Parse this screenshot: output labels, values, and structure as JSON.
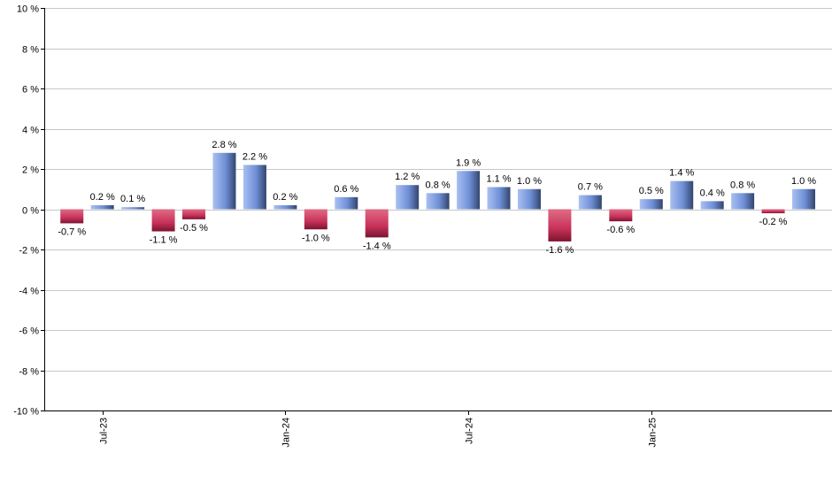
{
  "chart_data": {
    "type": "bar",
    "title": "",
    "xlabel": "",
    "ylabel": "",
    "ylim": [
      -10,
      10
    ],
    "y_ticks": [
      10,
      8,
      6,
      4,
      2,
      0,
      -2,
      -4,
      -6,
      -8,
      -10
    ],
    "y_tick_labels": [
      "10 %",
      "8 %",
      "6 %",
      "4 %",
      "2 %",
      "0 %",
      "-2 %",
      "-4 %",
      "-6 %",
      "-8 %",
      "-10 %"
    ],
    "grid": true,
    "legend": "none",
    "colors": {
      "positive": "#6f8fd6",
      "negative": "#c8325a",
      "grid": "#c8c8c8",
      "axis": "#000000"
    },
    "categories": [
      "2023-06",
      "2023-07",
      "2023-08",
      "2023-09",
      "2023-10",
      "2023-11",
      "2023-12",
      "2024-01",
      "2024-02",
      "2024-03",
      "2024-04",
      "2024-05",
      "2024-06",
      "2024-07",
      "2024-08",
      "2024-09",
      "2024-10",
      "2024-11",
      "2024-12",
      "2025-01",
      "2025-02",
      "2025-03",
      "2025-04",
      "2025-05",
      "2025-06"
    ],
    "values": [
      -0.7,
      0.2,
      0.1,
      -1.1,
      -0.5,
      2.8,
      2.2,
      0.2,
      -1.0,
      0.6,
      -1.4,
      1.2,
      0.8,
      1.9,
      1.1,
      1.0,
      -1.6,
      0.7,
      -0.6,
      0.5,
      1.4,
      0.4,
      0.8,
      -0.2,
      1.0
    ],
    "value_labels": [
      "-0.7 %",
      "0.2 %",
      "0.1 %",
      "-1.1 %",
      "-0.5 %",
      "2.8 %",
      "2.2 %",
      "0.2 %",
      "-1.0 %",
      "0.6 %",
      "-1.4 %",
      "1.2 %",
      "0.8 %",
      "1.9 %",
      "1.1 %",
      "1.0 %",
      "-1.6 %",
      "0.7 %",
      "-0.6 %",
      "0.5 %",
      "1.4 %",
      "0.4 %",
      "0.8 %",
      "-0.2 %",
      "1.0 %"
    ],
    "x_tick_labels": [
      {
        "category_index": 1,
        "label": "Jul-23"
      },
      {
        "category_index": 7,
        "label": "Jan-24"
      },
      {
        "category_index": 13,
        "label": "Jul-24"
      },
      {
        "category_index": 19,
        "label": "Jan-25"
      }
    ]
  }
}
